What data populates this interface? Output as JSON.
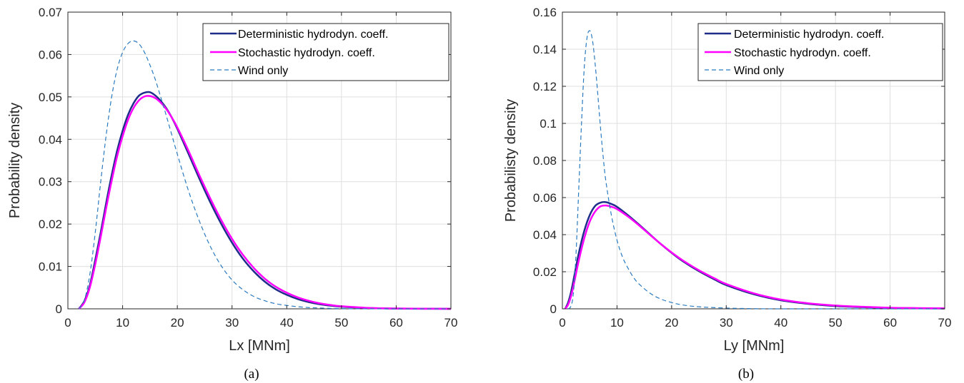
{
  "chart_data": [
    {
      "type": "line",
      "caption": "(a)",
      "xlabel": "Lx  [MNm]",
      "ylabel": "Probability density",
      "xlim": [
        0,
        70
      ],
      "ylim": [
        0,
        0.07
      ],
      "xticks": [
        0,
        10,
        20,
        30,
        40,
        50,
        60,
        70
      ],
      "yticks": [
        0,
        0.01,
        0.02,
        0.03,
        0.04,
        0.05,
        0.06,
        0.07
      ],
      "xtick_labels": [
        "0",
        "10",
        "20",
        "30",
        "40",
        "50",
        "60",
        "70"
      ],
      "ytick_labels": [
        "0",
        "0.01",
        "0.02",
        "0.03",
        "0.04",
        "0.05",
        "0.06",
        "0.07"
      ],
      "grid": true,
      "legend_position": "top-right",
      "series": [
        {
          "name": "Deterministic hydrodyn. coeff.",
          "color": "#1f2d8a",
          "style": "solid",
          "x": [
            2,
            3,
            4,
            5,
            6,
            7,
            8,
            9,
            10,
            11,
            12,
            13,
            14,
            15,
            16,
            17,
            18,
            19,
            20,
            22,
            24,
            26,
            28,
            30,
            32,
            34,
            36,
            38,
            40,
            42,
            44,
            46,
            48,
            50,
            55,
            60,
            65,
            70
          ],
          "y": [
            0,
            0.0018,
            0.0055,
            0.0115,
            0.018,
            0.025,
            0.0315,
            0.0373,
            0.042,
            0.0458,
            0.0485,
            0.0503,
            0.051,
            0.0511,
            0.0503,
            0.049,
            0.0473,
            0.0451,
            0.0425,
            0.0367,
            0.0308,
            0.0252,
            0.0201,
            0.0156,
            0.0118,
            0.0088,
            0.0064,
            0.0046,
            0.0033,
            0.0023,
            0.0016,
            0.0011,
            0.00075,
            0.0005,
            0.00018,
            6e-05,
            2e-05,
            0
          ]
        },
        {
          "name": "Stochastic hydrodyn. coeff.",
          "color": "#ff00ff",
          "style": "solid",
          "x": [
            2,
            3,
            4,
            5,
            6,
            7,
            8,
            9,
            10,
            11,
            12,
            13,
            14,
            15,
            16,
            17,
            18,
            19,
            20,
            22,
            24,
            26,
            28,
            30,
            32,
            34,
            36,
            38,
            40,
            42,
            44,
            46,
            48,
            50,
            55,
            60,
            65,
            70
          ],
          "y": [
            0,
            0.0015,
            0.005,
            0.0105,
            0.017,
            0.0238,
            0.0302,
            0.036,
            0.0407,
            0.0446,
            0.0474,
            0.0492,
            0.0501,
            0.0502,
            0.0497,
            0.0486,
            0.0471,
            0.0451,
            0.0428,
            0.0374,
            0.0316,
            0.0261,
            0.021,
            0.0165,
            0.0127,
            0.0096,
            0.0071,
            0.0052,
            0.0038,
            0.0027,
            0.0019,
            0.0013,
            0.0009,
            0.0006,
            0.00022,
            8e-05,
            3e-05,
            0
          ]
        },
        {
          "name": "Wind only",
          "color": "#2b7bbf",
          "style": "dashed",
          "x": [
            2,
            3,
            4,
            5,
            6,
            7,
            8,
            9,
            10,
            11,
            12,
            13,
            14,
            15,
            16,
            17,
            18,
            19,
            20,
            22,
            24,
            26,
            28,
            30,
            32,
            34,
            36,
            38,
            40,
            42,
            44,
            46,
            48,
            50,
            55,
            60,
            65,
            70
          ],
          "y": [
            0,
            0.002,
            0.008,
            0.018,
            0.03,
            0.041,
            0.05,
            0.0565,
            0.0605,
            0.0626,
            0.0632,
            0.0625,
            0.0605,
            0.0575,
            0.054,
            0.0498,
            0.0455,
            0.041,
            0.0365,
            0.028,
            0.0208,
            0.0148,
            0.0102,
            0.0068,
            0.0045,
            0.0029,
            0.0019,
            0.0012,
            0.0008,
            0.0005,
            0.0003,
            0.0002,
            0.0001,
            5e-05,
            0,
            0,
            0,
            0
          ]
        }
      ]
    },
    {
      "type": "line",
      "caption": "(b)",
      "xlabel": "Ly [MNm]",
      "ylabel": "Probabilisty density",
      "xlim": [
        0,
        70
      ],
      "ylim": [
        0,
        0.16
      ],
      "xticks": [
        0,
        10,
        20,
        30,
        40,
        50,
        60,
        70
      ],
      "yticks": [
        0,
        0.02,
        0.04,
        0.06,
        0.08,
        0.1,
        0.12,
        0.14,
        0.16
      ],
      "xtick_labels": [
        "0",
        "10",
        "20",
        "30",
        "40",
        "50",
        "60",
        "70"
      ],
      "ytick_labels": [
        "0",
        "0.02",
        "0.04",
        "0.06",
        "0.08",
        "0.1",
        "0.12",
        "0.14",
        "0.16"
      ],
      "grid": true,
      "legend_position": "top-right",
      "series": [
        {
          "name": "Deterministic hydrodyn. coeff.",
          "color": "#1f2d8a",
          "style": "solid",
          "x": [
            0.5,
            1,
            1.5,
            2,
            3,
            4,
            5,
            6,
            7,
            8,
            9,
            10,
            12,
            14,
            16,
            18,
            20,
            22,
            25,
            28,
            30,
            35,
            40,
            45,
            50,
            55,
            60,
            65,
            70
          ],
          "y": [
            0,
            0.003,
            0.008,
            0.015,
            0.03,
            0.042,
            0.0505,
            0.0555,
            0.0573,
            0.0575,
            0.0565,
            0.055,
            0.0505,
            0.0455,
            0.0402,
            0.035,
            0.0302,
            0.0258,
            0.0203,
            0.0156,
            0.0128,
            0.0079,
            0.0046,
            0.0027,
            0.0015,
            0.0009,
            0.0005,
            0.0003,
            0.0002
          ]
        },
        {
          "name": "Stochastic hydrodyn. coeff.",
          "color": "#ff00ff",
          "style": "solid",
          "x": [
            0.5,
            1,
            1.5,
            2,
            3,
            4,
            5,
            6,
            7,
            8,
            9,
            10,
            12,
            14,
            16,
            18,
            20,
            22,
            25,
            28,
            30,
            35,
            40,
            45,
            50,
            55,
            60,
            65,
            70
          ],
          "y": [
            0,
            0.002,
            0.006,
            0.012,
            0.026,
            0.038,
            0.047,
            0.0525,
            0.0553,
            0.0557,
            0.055,
            0.0538,
            0.0498,
            0.0451,
            0.04,
            0.035,
            0.0304,
            0.0262,
            0.0208,
            0.0162,
            0.0134,
            0.0084,
            0.005,
            0.003,
            0.0018,
            0.0011,
            0.0006,
            0.0004,
            0.0003
          ]
        },
        {
          "name": "Wind only",
          "color": "#2b7bbf",
          "style": "dashed",
          "x": [
            1,
            1.5,
            2,
            2.5,
            3,
            3.5,
            4,
            4.5,
            5,
            5.5,
            6,
            6.5,
            7,
            7.5,
            8,
            9,
            10,
            11,
            12,
            13,
            14,
            16,
            18,
            20,
            22,
            25,
            30,
            35,
            40,
            50,
            60,
            70
          ],
          "y": [
            0,
            0.001,
            0.008,
            0.03,
            0.065,
            0.1,
            0.13,
            0.146,
            0.15,
            0.145,
            0.132,
            0.115,
            0.097,
            0.081,
            0.068,
            0.05,
            0.037,
            0.028,
            0.022,
            0.017,
            0.0135,
            0.0085,
            0.0053,
            0.0034,
            0.0021,
            0.0011,
            0.0004,
            0.0001,
            0,
            0,
            0,
            0
          ]
        }
      ]
    }
  ]
}
